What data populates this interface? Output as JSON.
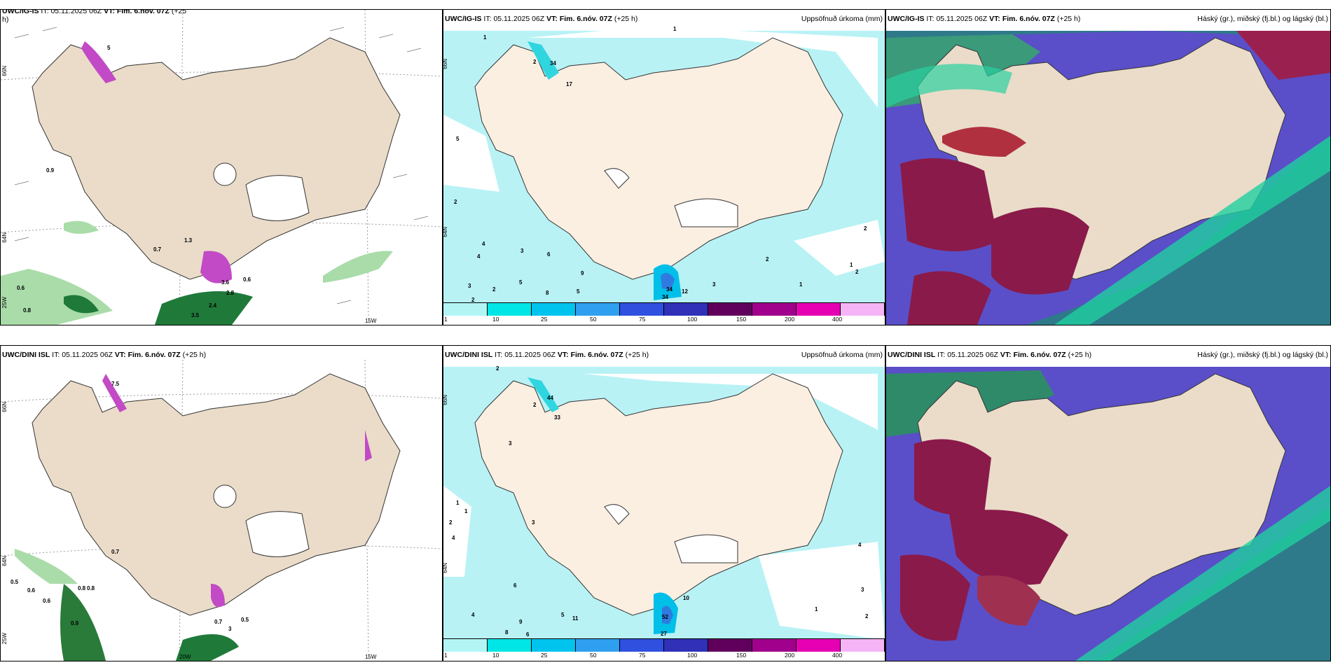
{
  "panels": {
    "p1": {
      "model": "UWC/IG-IS",
      "it_label": "IT:",
      "it": "05.11.2025 06Z",
      "vt_label": "VT:",
      "vt": "Fim. 6.nóv. 07Z",
      "lead": "(+25",
      "lead2": "h)",
      "lat1": "66N",
      "lat2": "64N",
      "lat3": "25W",
      "lon1": "15W",
      "vals": [
        "5",
        "0.9",
        "1.3",
        "0.7",
        "0.6",
        "0.6",
        "0.8",
        "2.8",
        "3.5",
        "3.6",
        "2.4"
      ]
    },
    "p2": {
      "model": "UWC/IG-IS",
      "it_label": "IT:",
      "it": "05.11.2025 06Z",
      "vt_label": "VT:",
      "vt": "Fim. 6.nóv. 07Z",
      "lead": "(+25 h)",
      "title_right": "Uppsöfnuð úrkoma (mm)",
      "lat1": "66N",
      "lat2": "64N",
      "vals": [
        "1",
        "1",
        "2",
        "34",
        "17",
        "5",
        "2",
        "4",
        "3",
        "5",
        "3",
        "2",
        "2",
        "6",
        "5",
        "9",
        "4",
        "8",
        "34",
        "34",
        "12",
        "3",
        "2",
        "1",
        "1",
        "2",
        "2"
      ]
    },
    "p3": {
      "model": "UWC/IG-IS",
      "it_label": "IT:",
      "it": "05.11.2025 06Z",
      "vt_label": "VT:",
      "vt": "Fim. 6.nóv. 07Z",
      "lead": "(+25 h)",
      "title_right": "Háský (gr.), miðský (fj.bl.) og lágský (bl.)"
    },
    "p4": {
      "model": "UWC/DINI ISL",
      "it_label": "IT:",
      "it": "05.11.2025 06Z",
      "vt_label": "VT:",
      "vt": "Fim. 6.nóv. 07Z",
      "lead": "(+25 h)",
      "lat1": "66N",
      "lat2": "64N",
      "lat3": "25W",
      "lon1": "20W",
      "lon2": "15W",
      "vals": [
        "7.5",
        "0.7",
        "0.5",
        "0.6",
        "0.6",
        "0.8",
        "0.8",
        "0.9",
        "0.7",
        "0.5",
        "3"
      ]
    },
    "p5": {
      "model": "UWC/DINI ISL",
      "it_label": "IT:",
      "it": "05.11.2025 06Z",
      "vt_label": "VT:",
      "vt": "Fim. 6.nóv. 07Z",
      "lead": "(+25 h)",
      "title_right": "Uppsöfnuð úrkoma (mm)",
      "lat1": "66N",
      "lat2": "64N",
      "vals": [
        "2",
        "44",
        "33",
        "2",
        "3",
        "4",
        "4",
        "5",
        "6",
        "10",
        "27",
        "52",
        "11",
        "9",
        "8",
        "6",
        "1",
        "1",
        "2",
        "3",
        "4",
        "2",
        "1",
        "3"
      ]
    },
    "p6": {
      "model": "UWC/DINI ISL",
      "it_label": "IT:",
      "it": "05.11.2025 06Z",
      "vt_label": "VT:",
      "vt": "Fim. 6.nóv. 07Z",
      "lead": "(+25 h)",
      "title_right": "Háský (gr.), miðský (fj.bl.) og lágský (bl.)"
    }
  },
  "colorbar": {
    "labels": [
      "1",
      "10",
      "25",
      "50",
      "75",
      "100",
      "150",
      "200",
      "400"
    ],
    "colors": [
      "#b3f5f5",
      "#00e5e5",
      "#00c3ee",
      "#2f9ff0",
      "#3050e0",
      "#3030b8",
      "#60005c",
      "#a0008c",
      "#e600b4",
      "#f5b4f5"
    ]
  }
}
